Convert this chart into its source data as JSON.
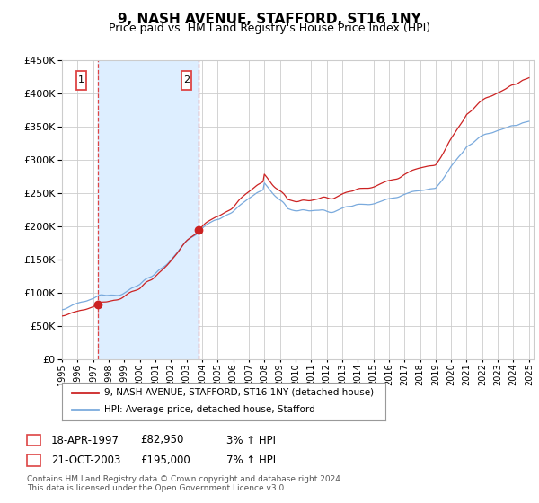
{
  "title": "9, NASH AVENUE, STAFFORD, ST16 1NY",
  "subtitle": "Price paid vs. HM Land Registry's House Price Index (HPI)",
  "sale1_date": "18-APR-1997",
  "sale1_price": 82950,
  "sale1_label": "1",
  "sale1_hpi": "3% ↑ HPI",
  "sale2_date": "21-OCT-2003",
  "sale2_price": 195000,
  "sale2_label": "2",
  "sale2_hpi": "7% ↑ HPI",
  "hpi_line_color": "#7aaadd",
  "price_line_color": "#cc2222",
  "marker_color": "#cc2222",
  "vline_color": "#dd4444",
  "vshade_color": "#ddeeff",
  "grid_color": "#cccccc",
  "bg_color": "#ffffff",
  "legend_label1": "9, NASH AVENUE, STAFFORD, ST16 1NY (detached house)",
  "legend_label2": "HPI: Average price, detached house, Stafford",
  "footer": "Contains HM Land Registry data © Crown copyright and database right 2024.\nThis data is licensed under the Open Government Licence v3.0.",
  "ylim_min": 0,
  "ylim_max": 450000,
  "ytick_step": 50000,
  "xstart_year": 1995,
  "xend_year": 2025,
  "sale1_year": 1997.29,
  "sale2_year": 2003.8
}
